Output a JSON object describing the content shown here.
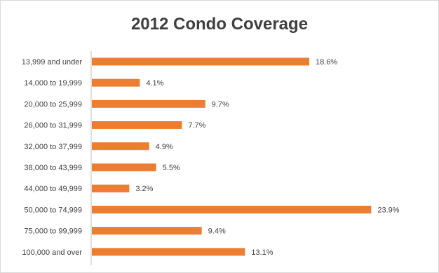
{
  "chart_data": {
    "type": "bar",
    "orientation": "horizontal",
    "title": "2012 Condo Coverage",
    "categories": [
      "13,999 and under",
      "14,000 to 19,999",
      "20,000 to 25,999",
      "26,000 to 31,999",
      "32,000 to 37,999",
      "38,000 to 43,999",
      "44,000 to 49,999",
      "50,000 to 74,999",
      "75,000 to 99,999",
      "100,000 and over"
    ],
    "values": [
      18.6,
      4.1,
      9.7,
      7.7,
      4.9,
      5.5,
      3.2,
      23.9,
      9.4,
      13.1
    ],
    "data_labels": [
      "18.6%",
      "4.1%",
      "9.7%",
      "7.7%",
      "4.9%",
      "5.5%",
      "3.2%",
      "23.9%",
      "9.4%",
      "13.1%"
    ],
    "xlim": [
      0,
      24
    ],
    "grid": false,
    "legend": "none",
    "bar_color": "#ed7d31",
    "axis_color": "#bfbfbf",
    "text_color": "#404040",
    "title_color": "#3f3f3f"
  }
}
